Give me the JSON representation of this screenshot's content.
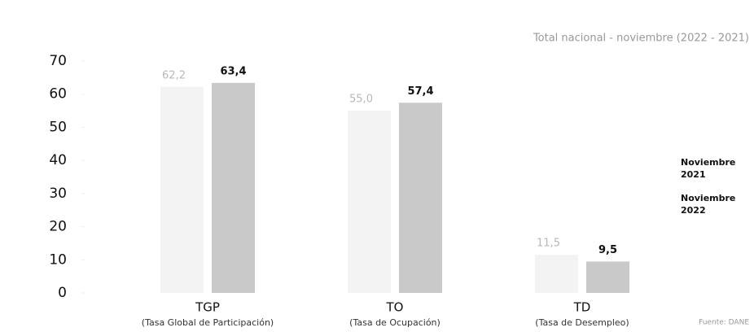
{
  "chart_data": {
    "type": "bar",
    "subtitle": "Total nacional - noviembre (2022 - 2021)",
    "categories": [
      "TGP",
      "TO",
      "TD"
    ],
    "category_descriptions": [
      "(Tasa Global de Participación)",
      "(Tasa de Ocupación)",
      "(Tasa de Desempleo)"
    ],
    "series": [
      {
        "name": "Noviembre 2021",
        "color": "#f3f3f3",
        "label_color": "#b8b8b8",
        "values": [
          62.2,
          55.0,
          11.5
        ],
        "value_labels": [
          "62,2",
          "55,0",
          "11,5"
        ]
      },
      {
        "name": "Noviembre 2022",
        "color": "#c9c9c9",
        "label_color": "#111111",
        "values": [
          63.4,
          57.4,
          9.5
        ],
        "value_labels": [
          "63,4",
          "57,4",
          "9,5"
        ]
      }
    ],
    "ylim": [
      0,
      70
    ],
    "yticks": [
      0,
      10,
      20,
      30,
      40,
      50,
      60,
      70
    ],
    "source": "Fuente: DANE"
  }
}
